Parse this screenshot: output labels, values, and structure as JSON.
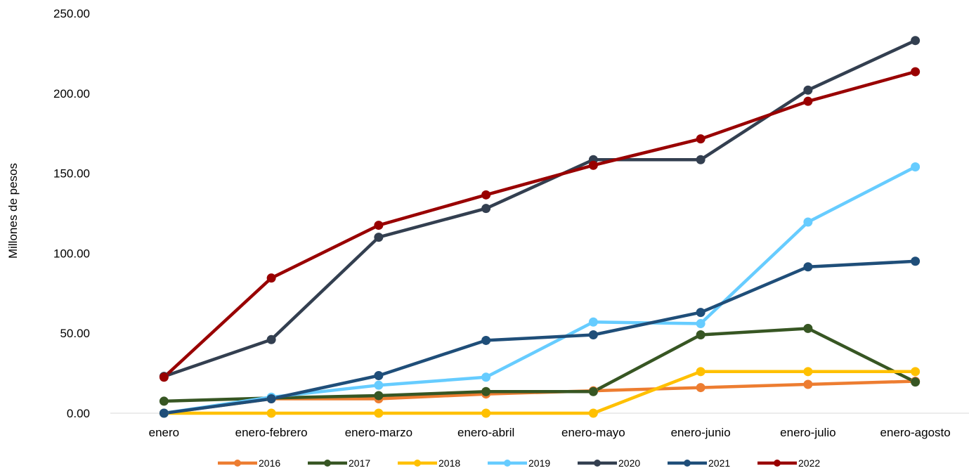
{
  "chart_data": {
    "type": "line",
    "title": "",
    "xlabel": "",
    "ylabel": "Millones de pesos",
    "ylim": [
      0,
      250
    ],
    "yticks": [
      "0.00",
      "50.00",
      "100.00",
      "150.00",
      "200.00",
      "250.00"
    ],
    "ytick_values": [
      0,
      50,
      100,
      150,
      200,
      250
    ],
    "grid": false,
    "legend_position": "bottom",
    "categories": [
      "enero",
      "enero-febrero",
      "enero-marzo",
      "enero-abril",
      "enero-mayo",
      "enero-junio",
      "enero-julio",
      "enero-agosto"
    ],
    "series": [
      {
        "name": "2016",
        "color": "#ED7D31",
        "values": [
          0.0,
          9.0,
          9.0,
          12.0,
          14.0,
          16.0,
          18.0,
          20.0
        ]
      },
      {
        "name": "2017",
        "color": "#375623",
        "values": [
          7.5,
          9.5,
          11.0,
          13.5,
          13.5,
          49.0,
          53.0,
          19.5
        ]
      },
      {
        "name": "2018",
        "color": "#FFC000",
        "values": [
          0.0,
          0.0,
          0.0,
          0.0,
          0.0,
          26.0,
          26.0,
          26.0
        ]
      },
      {
        "name": "2019",
        "color": "#66CCFF",
        "values": [
          0.0,
          10.0,
          17.5,
          22.5,
          57.0,
          56.0,
          119.5,
          154.0
        ]
      },
      {
        "name": "2020",
        "color": "#333F50",
        "values": [
          23.0,
          46.0,
          110.0,
          128.0,
          158.5,
          158.5,
          202.0,
          233.0
        ]
      },
      {
        "name": "2021",
        "color": "#1F4E79",
        "values": [
          0.0,
          9.0,
          23.5,
          45.5,
          49.0,
          63.0,
          91.5,
          95.0
        ]
      },
      {
        "name": "2022",
        "color": "#990000",
        "values": [
          22.5,
          84.5,
          117.5,
          136.5,
          155.0,
          171.5,
          195.0,
          213.5
        ]
      }
    ]
  }
}
